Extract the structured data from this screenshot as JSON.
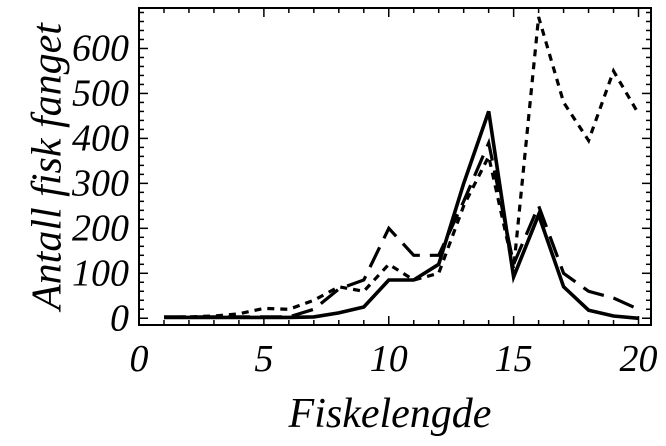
{
  "chart_data": {
    "type": "line",
    "xlabel": "Fiskelengde",
    "ylabel": "Antall fisk fanget",
    "xlim": [
      0,
      20.5
    ],
    "ylim": [
      -15,
      690
    ],
    "xticks": [
      0,
      5,
      10,
      15,
      20
    ],
    "yticks": [
      0,
      100,
      200,
      300,
      400,
      500,
      600
    ],
    "x": [
      1,
      2,
      3,
      4,
      5,
      6,
      7,
      8,
      9,
      10,
      11,
      12,
      13,
      14,
      15,
      16,
      17,
      18,
      19,
      20
    ],
    "series": [
      {
        "style": "solid",
        "color": "#000000",
        "values": [
          2,
          2,
          2,
          2,
          2,
          2,
          3,
          12,
          25,
          85,
          85,
          120,
          300,
          460,
          92,
          230,
          70,
          18,
          5,
          0
        ]
      },
      {
        "style": "dashed",
        "color": "#000000",
        "values": [
          3,
          3,
          3,
          3,
          3,
          3,
          20,
          65,
          85,
          200,
          140,
          140,
          260,
          390,
          120,
          250,
          100,
          60,
          45,
          20
        ]
      },
      {
        "style": "dotted",
        "color": "#000000",
        "values": [
          2,
          3,
          5,
          10,
          22,
          20,
          40,
          70,
          60,
          120,
          85,
          100,
          250,
          360,
          110,
          670,
          480,
          395,
          550,
          455
        ]
      }
    ]
  }
}
